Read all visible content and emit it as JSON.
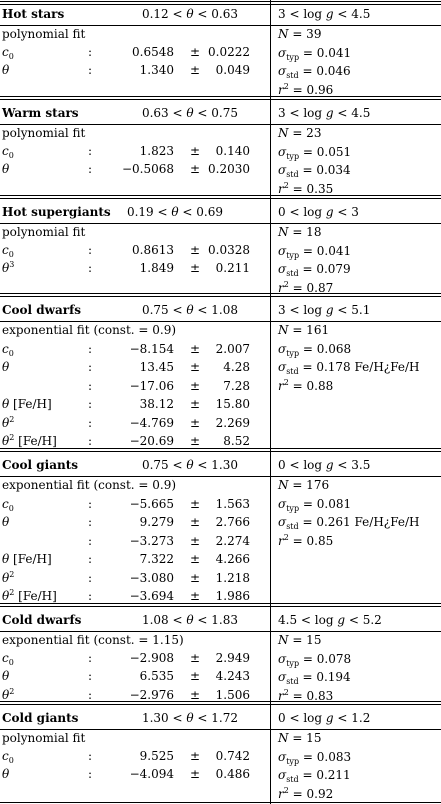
{
  "sections": [
    {
      "name": "Hot stars",
      "theta_range": "0.12 < θ < 0.63",
      "logg_range": "3 < log g < 4.5",
      "fit": "polynomial fit",
      "rows": [
        {
          "label": "c0",
          "colon": ":",
          "value": "0.6548",
          "pm": "±",
          "err": "0.0222"
        },
        {
          "label": "θ",
          "colon": ":",
          "value": "1.340",
          "pm": "±",
          "err": "0.049"
        }
      ],
      "stats": [
        "N = 39",
        "σtyp = 0.041",
        "σstd = 0.046",
        "r2 = 0.96"
      ]
    },
    {
      "name": "Warm stars",
      "theta_range": "0.63 < θ < 0.75",
      "logg_range": "3 < log g < 4.5",
      "fit": "polynomial fit",
      "rows": [
        {
          "label": "c0",
          "colon": ":",
          "value": "1.823",
          "pm": "±",
          "err": "0.140"
        },
        {
          "label": "θ",
          "colon": ":",
          "value": "−0.5068",
          "pm": "±",
          "err": "0.2030"
        }
      ],
      "stats": [
        "N = 23",
        "σtyp = 0.051",
        "σstd = 0.034",
        "r2 = 0.35"
      ]
    },
    {
      "name": "Hot supergiants",
      "theta_range": "0.19 < θ < 0.69",
      "logg_range": "0 < log g < 3",
      "fit": "polynomial fit",
      "rows": [
        {
          "label": "c0",
          "colon": ":",
          "value": "0.8613",
          "pm": "±",
          "err": "0.0328"
        },
        {
          "label": "θ3",
          "colon": ":",
          "value": "1.849",
          "pm": "±",
          "err": "0.211"
        }
      ],
      "stats": [
        "N = 18",
        "σtyp = 0.041",
        "σstd = 0.079",
        "r2 = 0.87"
      ]
    },
    {
      "name": "Cool dwarfs",
      "theta_range": "0.75 < θ < 1.08",
      "logg_range": "3 < log g < 5.1",
      "fit": "exponential fit (const. = 0.9)",
      "rows": [
        {
          "label": "c0",
          "colon": ":",
          "value": "−8.154",
          "pm": "±",
          "err": "2.007"
        },
        {
          "label": "θ",
          "colon": ":",
          "value": "13.45",
          "pm": "±",
          "err": "4.28"
        },
        {
          "label": "",
          "colon": ":",
          "value": "−17.06",
          "pm": "±",
          "err": "7.28"
        },
        {
          "label": "θ [Fe/H]",
          "colon": ":",
          "value": "38.12",
          "pm": "±",
          "err": "15.80"
        },
        {
          "label": "θ2",
          "colon": ":",
          "value": "−4.769",
          "pm": "±",
          "err": "2.269"
        },
        {
          "label": "θ2 [Fe/H]",
          "colon": ":",
          "value": "−20.69",
          "pm": "±",
          "err": "8.52"
        }
      ],
      "stats": [
        "N = 161",
        "σtyp = 0.068",
        "σstd = 0.178 Fe/H¿Fe/H",
        "r2 = 0.88"
      ]
    },
    {
      "name": "Cool giants",
      "theta_range": "0.75 < θ < 1.30",
      "logg_range": "0 < log g < 3.5",
      "fit": "exponential fit (const. = 0.9)",
      "rows": [
        {
          "label": "c0",
          "colon": ":",
          "value": "−5.665",
          "pm": "±",
          "err": "1.563"
        },
        {
          "label": "θ",
          "colon": ":",
          "value": "9.279",
          "pm": "±",
          "err": "2.766"
        },
        {
          "label": "",
          "colon": ":",
          "value": "−3.273",
          "pm": "±",
          "err": "2.274"
        },
        {
          "label": "θ [Fe/H]",
          "colon": ":",
          "value": "7.322",
          "pm": "±",
          "err": "4.266"
        },
        {
          "label": "θ2",
          "colon": ":",
          "value": "−3.080",
          "pm": "±",
          "err": "1.218"
        },
        {
          "label": "θ2 [Fe/H]",
          "colon": ":",
          "value": "−3.694",
          "pm": "±",
          "err": "1.986"
        }
      ],
      "stats": [
        "N = 176",
        "σtyp = 0.081",
        "σstd = 0.261 Fe/H¿Fe/H",
        "r2 = 0.85"
      ]
    },
    {
      "name": "Cold dwarfs",
      "theta_range": "1.08 < θ < 1.83",
      "logg_range": "4.5 < log g < 5.2",
      "fit": "exponential fit (const. = 1.15)",
      "rows": [
        {
          "label": "c0",
          "colon": ":",
          "value": "−2.908",
          "pm": "±",
          "err": "2.949"
        },
        {
          "label": "θ",
          "colon": ":",
          "value": "6.535",
          "pm": "±",
          "err": "4.243"
        },
        {
          "label": "θ2",
          "colon": ":",
          "value": "−2.976",
          "pm": "±",
          "err": "1.506"
        }
      ],
      "stats": [
        "N = 15",
        "σtyp = 0.078",
        "σstd = 0.194",
        "r2 = 0.83"
      ]
    },
    {
      "name": "Cold giants",
      "theta_range": "1.30 < θ < 1.72",
      "logg_range": "0 < log g < 1.2",
      "fit": "polynomial fit",
      "rows": [
        {
          "label": "c0",
          "colon": ":",
          "value": "9.525",
          "pm": "±",
          "err": "0.742"
        },
        {
          "label": "θ",
          "colon": ":",
          "value": "−4.094",
          "pm": "±",
          "err": "0.486"
        }
      ],
      "stats": [
        "N = 15",
        "σtyp = 0.083",
        "σstd = 0.211",
        "r2 = 0.92"
      ]
    }
  ]
}
